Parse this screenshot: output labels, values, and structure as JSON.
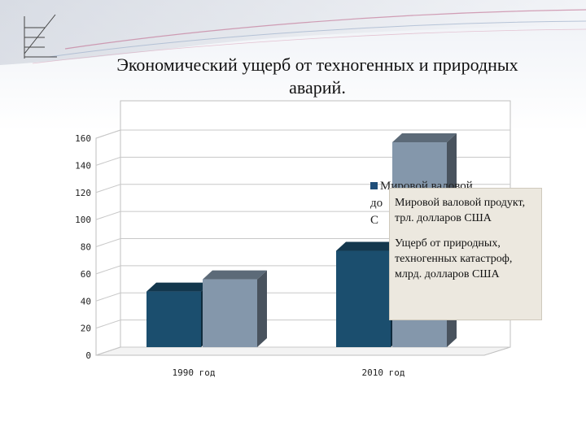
{
  "title": "Экономический ущерб от техногенных и природных аварий.",
  "legend_behind": [
    "Мировой валовой",
    "до",
    "С"
  ],
  "colors": {
    "series1": "#1b4e6e",
    "series2": "#8497ab",
    "background": "#ffffff",
    "header_wave": "#dfe3ea"
  },
  "chart_data": {
    "type": "bar",
    "categories": [
      "1990 год",
      "2010 год"
    ],
    "series": [
      {
        "name": "Мировой валовой продукт, трл. долларов США",
        "values": [
          41,
          71
        ]
      },
      {
        "name": "Ущерб от природных, техногенных катастроф, млрд. долларов США",
        "values": [
          50,
          151
        ]
      }
    ],
    "y_ticks": [
      "0",
      "20",
      "40",
      "60",
      "80",
      "100",
      "120",
      "140",
      "160"
    ],
    "ylim": [
      0,
      160
    ],
    "grid": true,
    "legend_position": "right",
    "three_d": true
  }
}
